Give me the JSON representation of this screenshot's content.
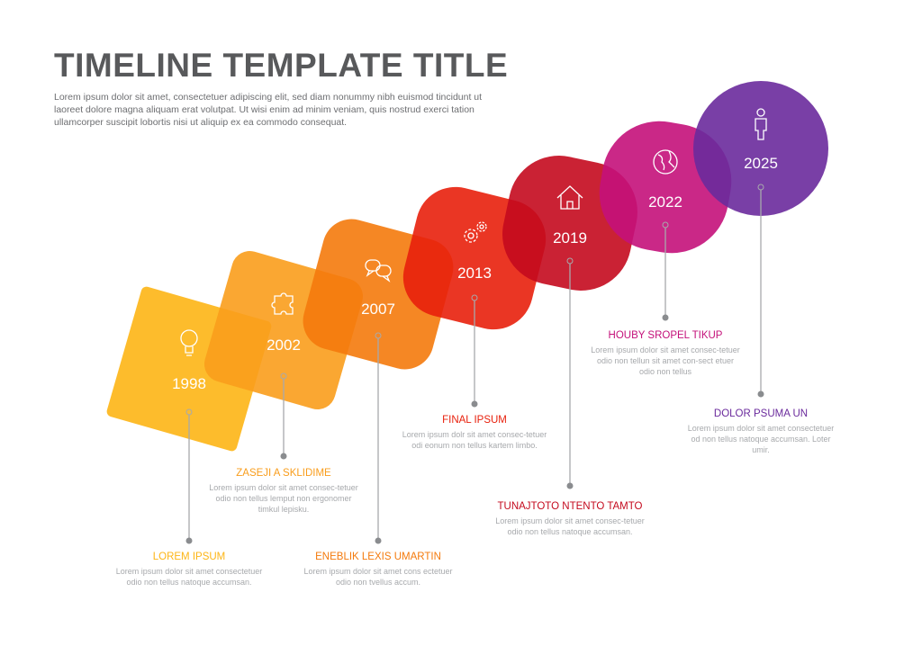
{
  "header": {
    "title": "TIMELINE TEMPLATE TITLE",
    "intro": "Lorem ipsum dolor sit amet, consectetuer adipiscing elit, sed diam nonummy nibh euismod tincidunt ut laoreet dolore magna aliquam erat volutpat. Ut wisi enim ad minim veniam, quis nostrud exerci tation ullamcorper suscipit lobortis nisi ut aliquip ex ea commodo consequat."
  },
  "items": [
    {
      "year": "1998",
      "icon": "lightbulb-icon",
      "color": "#FDB515",
      "title": "LOREM IPSUM",
      "text": "Lorem ipsum dolor sit amet consectetuer odio non tellus natoque accumsan."
    },
    {
      "year": "2002",
      "icon": "puzzle-icon",
      "color": "#F99D1C",
      "title": "ZASEJI A SKLIDIME",
      "text": "Lorem ipsum dolor sit amet consec-tetuer odio non tellus lemput non ergonomer timkul lepisku."
    },
    {
      "year": "2007",
      "icon": "chat-bubbles-icon",
      "color": "#F47A0C",
      "title": "ENEBLIK LEXIS UMARTIN",
      "text": "Lorem ipsum dolor sit amet cons ectetuer odio non tvellus accum."
    },
    {
      "year": "2013",
      "icon": "gears-icon",
      "color": "#E8200C",
      "title": "FINAL IPSUM",
      "text": "Lorem ipsum dolr sit amet consec-tetuer odi eonum non tellus kartem limbo."
    },
    {
      "year": "2019",
      "icon": "house-icon",
      "color": "#C40A1E",
      "title": "TUNAJTOTO NTENTO TAMTO",
      "text": "Lorem ipsum dolor sit amet consec-tetuer odio non tellus natoque accumsan."
    },
    {
      "year": "2022",
      "icon": "globe-icon",
      "color": "#C4117A",
      "title": "HOUBY SROPEL TIKUP",
      "text": "Lorem ipsum dolor sit amet consec-tetuer odio non tellun sit amet con-sect etuer odio non tellus"
    },
    {
      "year": "2025",
      "icon": "person-icon",
      "color": "#6A2A9C",
      "title": "DOLOR PSUMA UN",
      "text": "Lorem ipsum dolor sit amet consectetuer od non tellus natoque accumsan. Loter umir."
    }
  ]
}
